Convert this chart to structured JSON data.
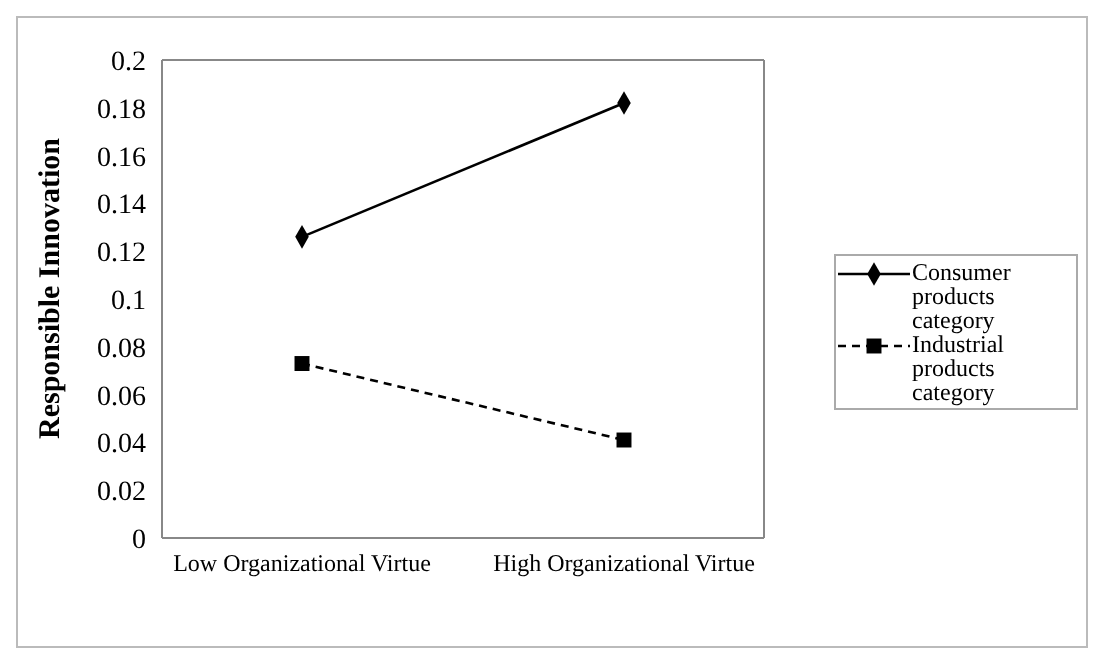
{
  "chart_data": {
    "type": "line",
    "ylabel": "Responsible Innovation",
    "categories": [
      "Low Organizational Virtue",
      "High Organizational Virtue"
    ],
    "series": [
      {
        "name": "Consumer products category",
        "color": "#000000",
        "values": [
          0.126,
          0.182
        ],
        "marker": "diamond",
        "line_style": "solid"
      },
      {
        "name": "Industrial products category",
        "color": "#000000",
        "values": [
          0.073,
          0.041
        ],
        "marker": "square",
        "line_style": "dashed"
      }
    ],
    "ylim": [
      0,
      0.2
    ],
    "yticks": [
      0,
      0.02,
      0.04,
      0.06,
      0.08,
      0.1,
      0.12,
      0.14,
      0.16,
      0.18,
      0.2
    ],
    "grid": false,
    "legend": "right"
  }
}
